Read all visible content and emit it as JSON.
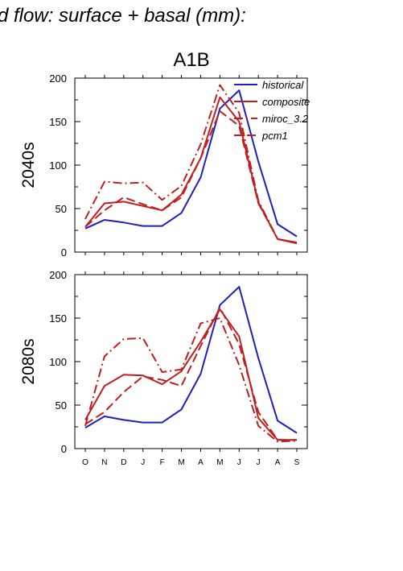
{
  "figure": {
    "header": "d flow: surface + basal (mm):",
    "scenario": "A1B"
  },
  "colors": {
    "historical": "#1f1fbf",
    "gcm": "#bf1f1f",
    "axis": "#000000"
  },
  "legend": {
    "placement": "top-right",
    "entries": [
      {
        "key": "historical",
        "label": "historical",
        "style": "solid",
        "color": "#1f1fbf"
      },
      {
        "key": "composite",
        "label": "composite",
        "style": "solid",
        "color": "#bf1f1f"
      },
      {
        "key": "miroc",
        "label": "miroc_3.2",
        "style": "dashdot",
        "color": "#bf1f1f"
      },
      {
        "key": "pcm1",
        "label": "pcm1",
        "style": "dashed",
        "color": "#bf1f1f"
      }
    ]
  },
  "chart_data": [
    {
      "type": "line",
      "title": "A1B",
      "ylabel": "2040s",
      "xlabel": "",
      "categories": [
        "O",
        "N",
        "D",
        "J",
        "F",
        "M",
        "A",
        "M",
        "J",
        "J",
        "A",
        "S"
      ],
      "ylim": [
        0,
        200
      ],
      "yticks": [
        0,
        50,
        100,
        150,
        200
      ],
      "show_xtick_labels": false,
      "grid": false,
      "series": [
        {
          "name": "historical",
          "style": "solid",
          "color": "#1f1fbf",
          "values": [
            27,
            37,
            34,
            30,
            30,
            45,
            86,
            165,
            186,
            104,
            32,
            18
          ]
        },
        {
          "name": "composite",
          "style": "solid",
          "color": "#bf1f1f",
          "values": [
            29,
            56,
            58,
            53,
            48,
            66,
            108,
            178,
            150,
            57,
            15,
            11
          ]
        },
        {
          "name": "miroc_3.2",
          "style": "dashdot",
          "color": "#bf1f1f",
          "values": [
            38,
            81,
            79,
            80,
            60,
            76,
            124,
            192,
            160,
            59,
            15,
            10
          ]
        },
        {
          "name": "pcm1",
          "style": "dashed",
          "color": "#bf1f1f",
          "values": [
            29,
            48,
            63,
            55,
            48,
            63,
            108,
            162,
            145,
            56,
            15,
            10
          ]
        }
      ]
    },
    {
      "type": "line",
      "title": "",
      "ylabel": "2080s",
      "xlabel": "",
      "categories": [
        "O",
        "N",
        "D",
        "J",
        "F",
        "M",
        "A",
        "M",
        "J",
        "J",
        "A",
        "S"
      ],
      "ylim": [
        0,
        200
      ],
      "yticks": [
        0,
        50,
        100,
        150,
        200
      ],
      "show_xtick_labels": true,
      "grid": false,
      "series": [
        {
          "name": "historical",
          "style": "solid",
          "color": "#1f1fbf",
          "values": [
            24,
            37,
            33,
            30,
            30,
            45,
            86,
            165,
            186,
            104,
            32,
            18
          ]
        },
        {
          "name": "composite",
          "style": "solid",
          "color": "#bf1f1f",
          "values": [
            33,
            72,
            85,
            84,
            74,
            89,
            123,
            160,
            129,
            35,
            10,
            10
          ]
        },
        {
          "name": "miroc_3.2",
          "style": "dashdot",
          "color": "#bf1f1f",
          "values": [
            26,
            106,
            126,
            127,
            88,
            91,
            144,
            150,
            96,
            26,
            8,
            9
          ]
        },
        {
          "name": "pcm1",
          "style": "dashed",
          "color": "#bf1f1f",
          "values": [
            28,
            42,
            65,
            83,
            79,
            72,
            118,
            162,
            120,
            42,
            10,
            10
          ]
        }
      ]
    }
  ]
}
